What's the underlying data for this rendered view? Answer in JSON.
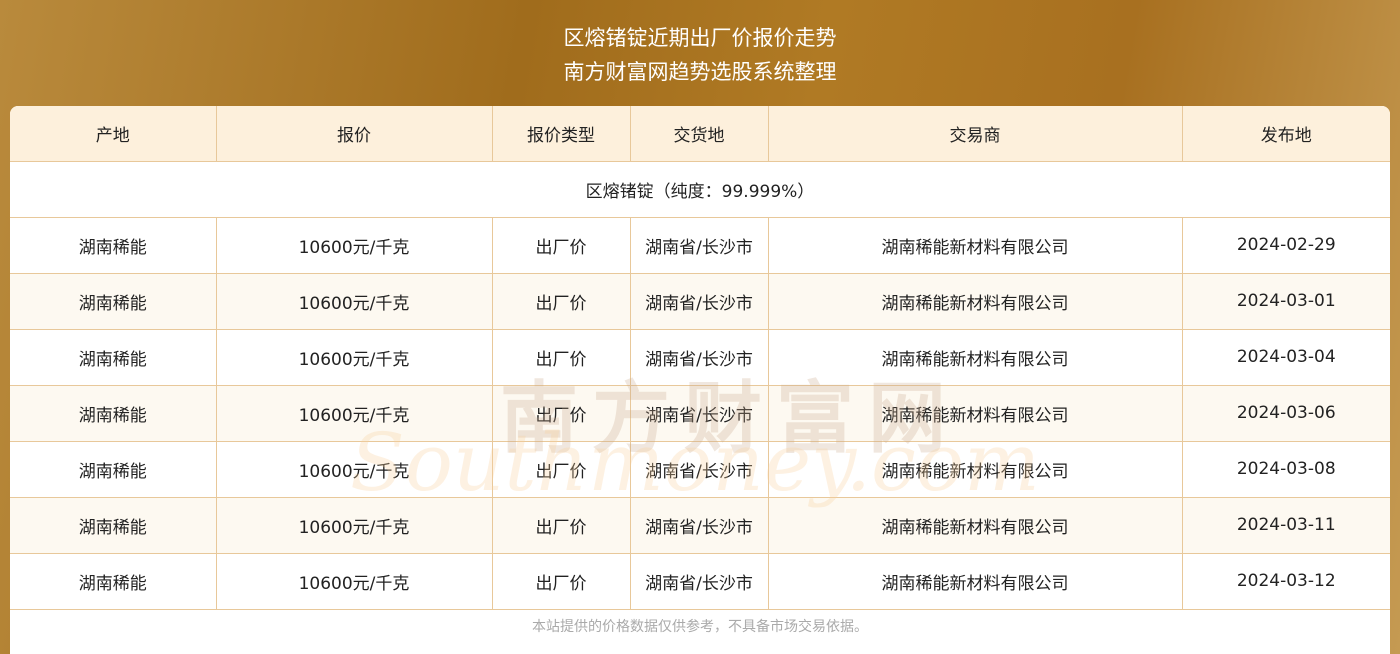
{
  "header": {
    "title": "区熔锗锭近期出厂价报价走势",
    "subtitle": "南方财富网趋势选股系统整理"
  },
  "table": {
    "columns": [
      "产地",
      "报价",
      "报价类型",
      "交货地",
      "交易商",
      "发布地"
    ],
    "group_label": "区熔锗锭（纯度：99.999%）",
    "rows": [
      [
        "湖南稀能",
        "10600元/千克",
        "出厂价",
        "湖南省/长沙市",
        "湖南稀能新材料有限公司",
        "2024-02-29"
      ],
      [
        "湖南稀能",
        "10600元/千克",
        "出厂价",
        "湖南省/长沙市",
        "湖南稀能新材料有限公司",
        "2024-03-01"
      ],
      [
        "湖南稀能",
        "10600元/千克",
        "出厂价",
        "湖南省/长沙市",
        "湖南稀能新材料有限公司",
        "2024-03-04"
      ],
      [
        "湖南稀能",
        "10600元/千克",
        "出厂价",
        "湖南省/长沙市",
        "湖南稀能新材料有限公司",
        "2024-03-06"
      ],
      [
        "湖南稀能",
        "10600元/千克",
        "出厂价",
        "湖南省/长沙市",
        "湖南稀能新材料有限公司",
        "2024-03-08"
      ],
      [
        "湖南稀能",
        "10600元/千克",
        "出厂价",
        "湖南省/长沙市",
        "湖南稀能新材料有限公司",
        "2024-03-11"
      ],
      [
        "湖南稀能",
        "10600元/千克",
        "出厂价",
        "湖南省/长沙市",
        "湖南稀能新材料有限公司",
        "2024-03-12"
      ]
    ]
  },
  "watermark": {
    "cn": "南方财富网",
    "en": "Southmoney.com"
  },
  "footer": {
    "disclaimer": "本站提供的价格数据仅供参考，不具备市场交易依据。"
  }
}
